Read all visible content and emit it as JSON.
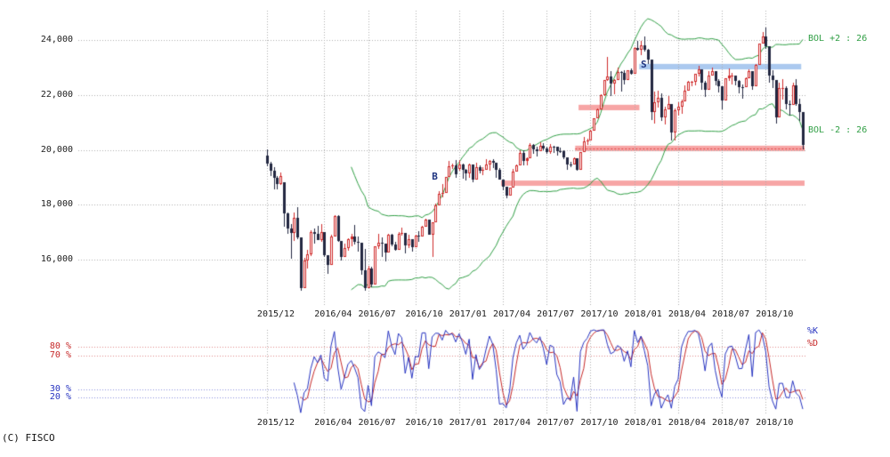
{
  "copyright": "(C) FISCO",
  "colors": {
    "up_candle": "#cf2b2b",
    "down_candle": "#222741",
    "bollinger": "#2f9e44",
    "grid": "#adadad",
    "stoch_k": "#2633c0",
    "stoch_d": "#c62828",
    "marker": "#1f3480",
    "zone_pink": "#f7a5a5",
    "zone_blue": "#abc9ef"
  },
  "chart_data": [
    {
      "type": "candlestick",
      "timeframe": "weekly",
      "title": "",
      "xlabel": "",
      "ylabel": "",
      "ylim": [
        14300,
        25100
      ],
      "grid": true,
      "y_ticks": [
        {
          "value": 24000,
          "label": "24,000"
        },
        {
          "value": 22000,
          "label": "22,000"
        },
        {
          "value": 20000,
          "label": "20,000"
        },
        {
          "value": 18000,
          "label": "18,000"
        },
        {
          "value": 16000,
          "label": "16,000"
        }
      ],
      "x_ticks": [
        {
          "index": 0,
          "label": "2015/12"
        },
        {
          "index": 17,
          "label": "2016/04"
        },
        {
          "index": 30,
          "label": "2016/07"
        },
        {
          "index": 44,
          "label": "2016/10"
        },
        {
          "index": 57,
          "label": "2017/01"
        },
        {
          "index": 70,
          "label": "2017/04"
        },
        {
          "index": 83,
          "label": "2017/07"
        },
        {
          "index": 96,
          "label": "2017/10"
        },
        {
          "index": 109,
          "label": "2018/01"
        },
        {
          "index": 122,
          "label": "2018/04"
        },
        {
          "index": 135,
          "label": "2018/07"
        },
        {
          "index": 148,
          "label": "2018/10"
        }
      ],
      "candles": [
        [
          19780,
          20012,
          19400,
          19504
        ],
        [
          19504,
          19560,
          19045,
          19230
        ],
        [
          19230,
          19353,
          18565,
          18986
        ],
        [
          18986,
          19050,
          18568,
          18769
        ],
        [
          18769,
          19180,
          18724,
          19034
        ],
        [
          18820,
          18820,
          17190,
          17697
        ],
        [
          17697,
          17715,
          16944,
          17147
        ],
        [
          17147,
          17280,
          16017,
          16959
        ],
        [
          16959,
          17715,
          16683,
          17518
        ],
        [
          17518,
          17905,
          16761,
          16819
        ],
        [
          16819,
          16819,
          14866,
          14952
        ],
        [
          14952,
          16054,
          14952,
          15967
        ],
        [
          15967,
          16352,
          15687,
          16188
        ],
        [
          16188,
          17060,
          16132,
          17014
        ],
        [
          17014,
          17124,
          16579,
          16938
        ],
        [
          16938,
          17233,
          16724,
          16724
        ],
        [
          16724,
          17291,
          16653,
          17002
        ],
        [
          17002,
          17002,
          16112,
          16164
        ],
        [
          16164,
          16164,
          15471,
          15821
        ],
        [
          15821,
          16911,
          15821,
          16848
        ],
        [
          16848,
          17613,
          16848,
          17572
        ],
        [
          17572,
          17613,
          16652,
          16666
        ],
        [
          16666,
          16666,
          15975,
          16107
        ],
        [
          16107,
          16579,
          16107,
          16412
        ],
        [
          16412,
          16775,
          16319,
          16736
        ],
        [
          16736,
          16940,
          16498,
          16834
        ],
        [
          16834,
          17251,
          16562,
          16642
        ],
        [
          16642,
          16830,
          16305,
          16601
        ],
        [
          16601,
          16601,
          15434,
          15599
        ],
        [
          15599,
          16389,
          14864,
          14952
        ],
        [
          14952,
          15775,
          14952,
          15682
        ],
        [
          15682,
          15730,
          14998,
          15106
        ],
        [
          15106,
          16497,
          15106,
          16497
        ],
        [
          16497,
          16938,
          16397,
          16627
        ],
        [
          16627,
          16821,
          16112,
          16569
        ],
        [
          16569,
          16569,
          15921,
          16254
        ],
        [
          16254,
          16943,
          16254,
          16919
        ],
        [
          16919,
          16926,
          16486,
          16545
        ],
        [
          16545,
          16655,
          16310,
          16360
        ],
        [
          16360,
          17012,
          16360,
          16925
        ],
        [
          16925,
          17156,
          16887,
          16965
        ],
        [
          16965,
          16965,
          16216,
          16519
        ],
        [
          16519,
          16901,
          16434,
          16754
        ],
        [
          16754,
          16754,
          16285,
          16449
        ],
        [
          16449,
          16921,
          16444,
          16860
        ],
        [
          16860,
          17044,
          16660,
          16856
        ],
        [
          16856,
          17220,
          16856,
          17184
        ],
        [
          17184,
          17491,
          17184,
          17446
        ],
        [
          17446,
          17473,
          16905,
          16905
        ],
        [
          16905,
          17374,
          16111,
          17374
        ],
        [
          17374,
          18043,
          17374,
          17967
        ],
        [
          17967,
          18481,
          17967,
          18381
        ],
        [
          18381,
          18746,
          18271,
          18426
        ],
        [
          18426,
          19012,
          18426,
          18996
        ],
        [
          18996,
          19592,
          18996,
          19401
        ],
        [
          19401,
          19494,
          19301,
          19428
        ],
        [
          19428,
          19615,
          18991,
          19114
        ],
        [
          19298,
          19615,
          19241,
          19454
        ],
        [
          19454,
          19484,
          18951,
          19287
        ],
        [
          19287,
          19301,
          18894,
          19137
        ],
        [
          19137,
          19486,
          18983,
          19467
        ],
        [
          19467,
          19467,
          18805,
          18918
        ],
        [
          18918,
          19518,
          18918,
          19378
        ],
        [
          19378,
          19437,
          19149,
          19235
        ],
        [
          19235,
          19381,
          19079,
          19284
        ],
        [
          19284,
          19669,
          19284,
          19469
        ],
        [
          19469,
          19633,
          19254,
          19605
        ],
        [
          19605,
          19668,
          19350,
          19522
        ],
        [
          19522,
          19522,
          18973,
          19263
        ],
        [
          19263,
          19345,
          18909,
          18909
        ],
        [
          18909,
          18909,
          18517,
          18665
        ],
        [
          18665,
          18665,
          18224,
          18336
        ],
        [
          18336,
          18639,
          18321,
          18621
        ],
        [
          18621,
          19289,
          18621,
          19197
        ],
        [
          19197,
          19462,
          19197,
          19446
        ],
        [
          19446,
          19998,
          19446,
          19884
        ],
        [
          19884,
          19990,
          19449,
          19590
        ],
        [
          19590,
          19735,
          19449,
          19686
        ],
        [
          19686,
          20239,
          19686,
          20177
        ],
        [
          20177,
          20224,
          19862,
          20013
        ],
        [
          20013,
          20119,
          19755,
          19943
        ],
        [
          19943,
          20266,
          19943,
          20132
        ],
        [
          20132,
          20252,
          19993,
          20033
        ],
        [
          20033,
          20110,
          19856,
          19929
        ],
        [
          19929,
          20210,
          19856,
          20118
        ],
        [
          20118,
          20144,
          19900,
          20100
        ],
        [
          20100,
          20100,
          19794,
          19960
        ],
        [
          19960,
          20080,
          19899,
          19952
        ],
        [
          19952,
          19985,
          19660,
          19730
        ],
        [
          19730,
          19730,
          19280,
          19470
        ],
        [
          19470,
          19560,
          19356,
          19453
        ],
        [
          19453,
          19735,
          19453,
          19691
        ],
        [
          19691,
          19691,
          19240,
          19275
        ],
        [
          19275,
          19910,
          19275,
          19910
        ],
        [
          19910,
          20481,
          19910,
          20296
        ],
        [
          20296,
          20397,
          20190,
          20356
        ],
        [
          20356,
          20714,
          20356,
          20691
        ],
        [
          20691,
          21155,
          20691,
          21155
        ],
        [
          21155,
          21497,
          21155,
          21458
        ],
        [
          21458,
          22016,
          21458,
          22008
        ],
        [
          22008,
          22540,
          21972,
          22539
        ],
        [
          22539,
          23382,
          22523,
          22681
        ],
        [
          22681,
          22868,
          21972,
          22397
        ],
        [
          22397,
          22588,
          22028,
          22551
        ],
        [
          22551,
          22994,
          22551,
          22819
        ],
        [
          22819,
          22880,
          22119,
          22811
        ],
        [
          22811,
          22897,
          22370,
          22553
        ],
        [
          22553,
          22911,
          22553,
          22903
        ],
        [
          22903,
          22954,
          22736,
          22765
        ],
        [
          22765,
          23730,
          22765,
          23715
        ],
        [
          23715,
          23952,
          23602,
          23654
        ],
        [
          23654,
          23952,
          23453,
          23808
        ],
        [
          23808,
          24129,
          23592,
          23632
        ],
        [
          23632,
          23689,
          23122,
          23275
        ],
        [
          23275,
          23275,
          21078,
          21383
        ],
        [
          21383,
          22129,
          20950,
          21720
        ],
        [
          21720,
          22149,
          21550,
          21893
        ],
        [
          21893,
          22048,
          21042,
          21182
        ],
        [
          21182,
          21575,
          20937,
          21469
        ],
        [
          21469,
          21968,
          21469,
          21677
        ],
        [
          21677,
          21677,
          20347,
          20618
        ],
        [
          20618,
          21502,
          20348,
          21454
        ],
        [
          21454,
          21717,
          21242,
          21568
        ],
        [
          21568,
          21836,
          21318,
          21779
        ],
        [
          21779,
          22346,
          21779,
          22162
        ],
        [
          22162,
          22508,
          22162,
          22468
        ],
        [
          22468,
          22513,
          22309,
          22473
        ],
        [
          22473,
          22772,
          22341,
          22758
        ],
        [
          22758,
          23050,
          22667,
          22930
        ],
        [
          22930,
          22930,
          22172,
          22451
        ],
        [
          22451,
          22518,
          21932,
          22171
        ],
        [
          22171,
          22870,
          22171,
          22695
        ],
        [
          22695,
          23011,
          22695,
          22852
        ],
        [
          22852,
          22852,
          22341,
          22517
        ],
        [
          22517,
          22574,
          22105,
          22304
        ],
        [
          22304,
          22304,
          21462,
          21788
        ],
        [
          21788,
          22597,
          21788,
          22597
        ],
        [
          22597,
          22949,
          22509,
          22698
        ],
        [
          22698,
          22798,
          22396,
          22713
        ],
        [
          22713,
          22713,
          22346,
          22525
        ],
        [
          22525,
          22529,
          22048,
          22298
        ],
        [
          22298,
          22382,
          21851,
          22270
        ],
        [
          22270,
          22628,
          22270,
          22602
        ],
        [
          22602,
          22938,
          22599,
          22865
        ],
        [
          22865,
          22865,
          22172,
          22307
        ],
        [
          22307,
          23134,
          22307,
          23094
        ],
        [
          23094,
          23871,
          23094,
          23870
        ],
        [
          23870,
          24286,
          23870,
          24120
        ],
        [
          24120,
          24448,
          23684,
          23784
        ],
        [
          23784,
          23784,
          22459,
          22695
        ],
        [
          22695,
          22885,
          22259,
          22532
        ],
        [
          22532,
          22532,
          20971,
          21185
        ],
        [
          21185,
          22456,
          21185,
          22243
        ],
        [
          22243,
          22583,
          21830,
          22250
        ],
        [
          22250,
          22305,
          21484,
          21680
        ],
        [
          21680,
          21810,
          21246,
          21647
        ],
        [
          21647,
          22452,
          21647,
          22351
        ],
        [
          22351,
          22574,
          21588,
          21679
        ],
        [
          21679,
          21871,
          21062,
          21375
        ],
        [
          21375,
          21375,
          20006,
          20166
        ]
      ],
      "overlays": {
        "bollinger": {
          "period": 26,
          "mult": 2,
          "upper_label": "BOL +2 : 26",
          "lower_label": "BOL -2 : 26"
        },
        "zones": [
          {
            "from": 93,
            "to": 110,
            "top": 21640,
            "bottom": 21440,
            "color": "#f7a5a5"
          },
          {
            "from": 111,
            "to": 158,
            "top": 23130,
            "bottom": 22930,
            "color": "#abc9ef"
          },
          {
            "from": 92,
            "to": 159,
            "top": 20150,
            "bottom": 19950,
            "color": "#f7a5a5",
            "midline": "#dd4444"
          },
          {
            "from": 70,
            "to": 159,
            "top": 18880,
            "bottom": 18690,
            "color": "#f7a5a5"
          }
        ],
        "markers": [
          {
            "label": "S",
            "index": 112,
            "price": 23060
          },
          {
            "label": "B",
            "index": 50,
            "price": 18980
          }
        ]
      }
    },
    {
      "type": "line",
      "name": "stochastic",
      "derived_from": "candles",
      "k_period": 9,
      "d_smooth": 3,
      "ylim": [
        0,
        100
      ],
      "legend": [
        {
          "label": "%K",
          "color": "#2633c0"
        },
        {
          "label": "%D",
          "color": "#c62828"
        }
      ],
      "ref_lines": [
        {
          "value": 80,
          "label": "80 %",
          "color": "#c62828"
        },
        {
          "value": 70,
          "label": "70 %",
          "color": "#c62828"
        },
        {
          "value": 30,
          "label": "30 %",
          "color": "#2633c0"
        },
        {
          "value": 20,
          "label": "20 %",
          "color": "#2633c0"
        }
      ]
    }
  ]
}
